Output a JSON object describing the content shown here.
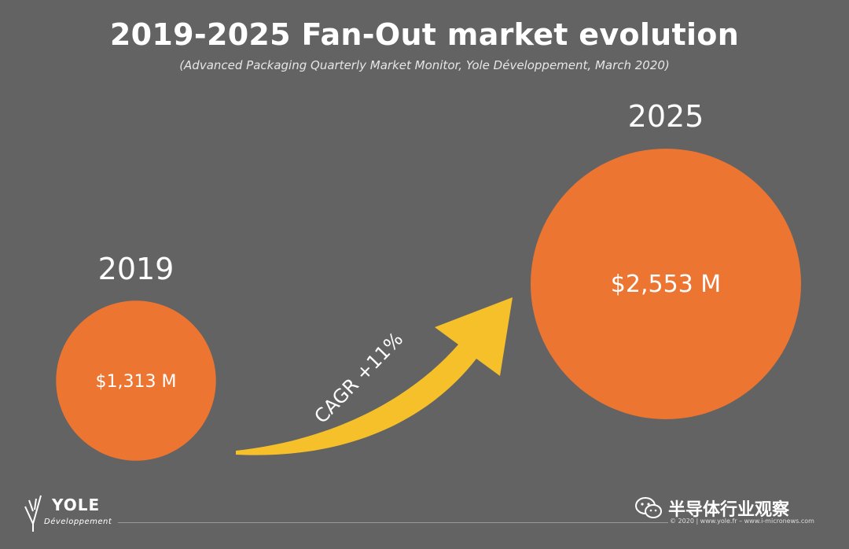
{
  "title": "2019-2025 Fan-Out market evolution",
  "subtitle": "(Advanced Packaging Quarterly Market Monitor, Yole Développement, March 2020)",
  "chart_data": {
    "type": "bubble",
    "title": "2019-2025 Fan-Out market evolution",
    "subtitle": "(Advanced Packaging Quarterly Market Monitor, Yole Développement, March 2020)",
    "categories": [
      "2019",
      "2025"
    ],
    "values": [
      1313,
      2553
    ],
    "value_labels": [
      "$1,313 M",
      "$2,553 M"
    ],
    "unit": "$M",
    "annotation": "CAGR +11%",
    "colors": {
      "bubble": "#ED7532",
      "arrow": "#F6C02A",
      "background": "#636363"
    }
  },
  "logo": {
    "name": "YOLE",
    "sub": "Développement"
  },
  "watermark": {
    "text": "半导体行业观察",
    "icon": "wechat-icon"
  },
  "copyright": "© 2020 | www.yole.fr – www.i-micronews.com"
}
